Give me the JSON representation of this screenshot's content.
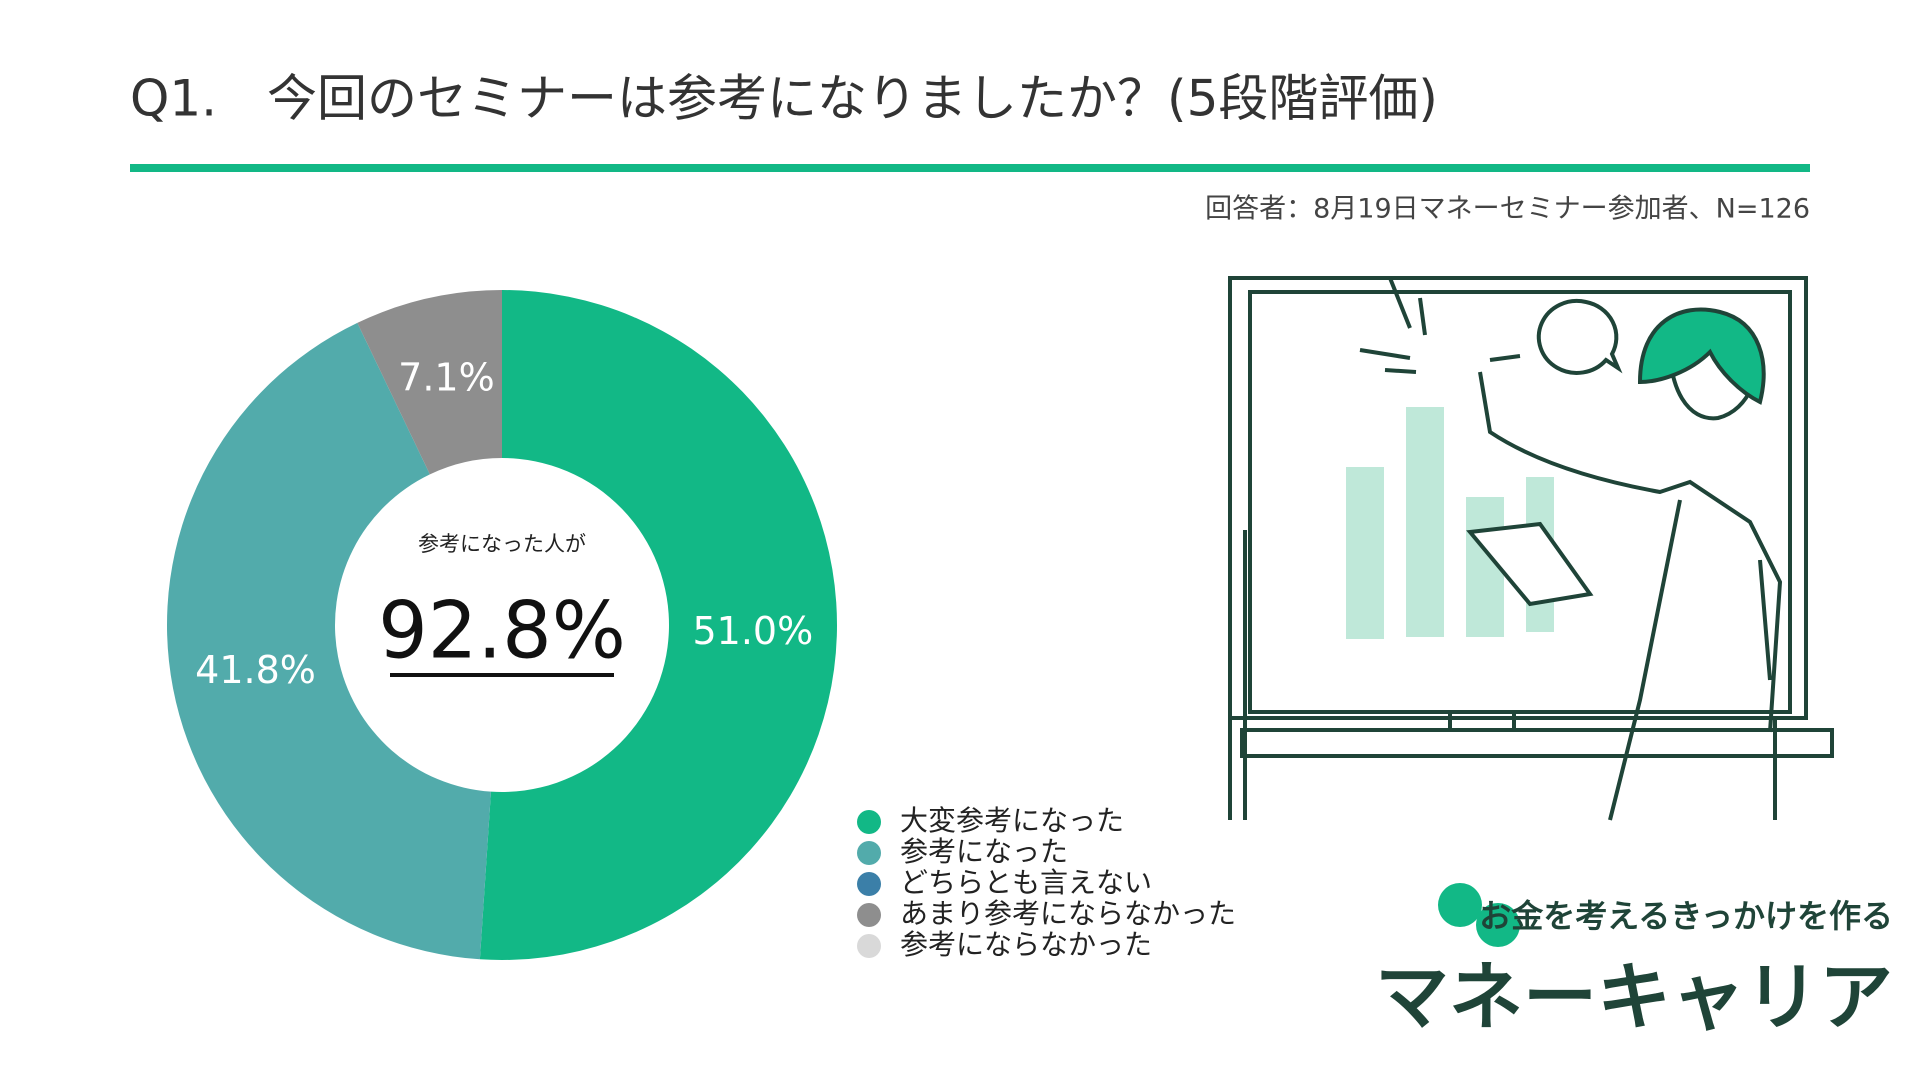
{
  "chart_data": {
    "type": "donut",
    "title": "Q1.　今回のセミナーは参考になりましたか？(5段階評価)",
    "subtitle": "回答者：8月19日マネーセミナー参加者、N=126",
    "categories": [
      "大変参考になった",
      "参考になった",
      "どちらとも言えない",
      "あまり参考にならなかった",
      "参考にならなかった"
    ],
    "values": [
      51.0,
      41.8,
      0,
      7.1,
      0
    ],
    "value_labels": [
      "51.0%",
      "41.8%",
      null,
      "7.1%",
      null
    ],
    "colors": [
      "#12b886",
      "#52abab",
      "#3b7fa8",
      "#8e8e8e",
      "#d9d9d9"
    ],
    "center_caption": "参考になった人が",
    "center_text": "92.8%"
  },
  "logo": {
    "tagline": "お金を考えるきっかけを作る",
    "name": "マネーキャリア"
  }
}
